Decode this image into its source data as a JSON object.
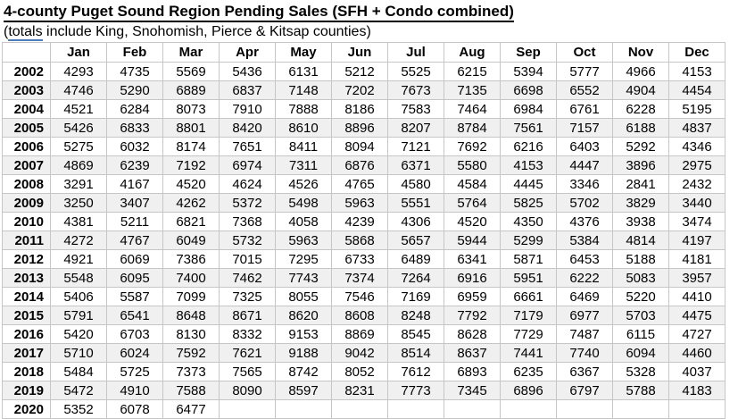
{
  "header": {
    "title": "4-county Puget Sound Region Pending Sales (SFH + Condo combined)",
    "subtitle_prefix": "(",
    "subtitle_linked": "totals",
    "subtitle_rest": " include King, Snohomish, Pierce & Kitsap counties)"
  },
  "colors": {
    "grid_border": "#c6c6c6",
    "row_stripe": "#f0f0f0",
    "title_underline": "#000000",
    "totals_underline": "#4a7ebb"
  },
  "chart_data": {
    "type": "table",
    "title": "4-county Puget Sound Region Pending Sales (SFH + Condo combined)",
    "columns": [
      "Jan",
      "Feb",
      "Mar",
      "Apr",
      "May",
      "Jun",
      "Jul",
      "Aug",
      "Sep",
      "Oct",
      "Nov",
      "Dec"
    ],
    "rows": [
      {
        "year": "2002",
        "values": [
          "4293",
          "4735",
          "5569",
          "5436",
          "6131",
          "5212",
          "5525",
          "6215",
          "5394",
          "5777",
          "4966",
          "4153"
        ]
      },
      {
        "year": "2003",
        "values": [
          "4746",
          "5290",
          "6889",
          "6837",
          "7148",
          "7202",
          "7673",
          "7135",
          "6698",
          "6552",
          "4904",
          "4454"
        ]
      },
      {
        "year": "2004",
        "values": [
          "4521",
          "6284",
          "8073",
          "7910",
          "7888",
          "8186",
          "7583",
          "7464",
          "6984",
          "6761",
          "6228",
          "5195"
        ]
      },
      {
        "year": "2005",
        "values": [
          "5426",
          "6833",
          "8801",
          "8420",
          "8610",
          "8896",
          "8207",
          "8784",
          "7561",
          "7157",
          "6188",
          "4837"
        ]
      },
      {
        "year": "2006",
        "values": [
          "5275",
          "6032",
          "8174",
          "7651",
          "8411",
          "8094",
          "7121",
          "7692",
          "6216",
          "6403",
          "5292",
          "4346"
        ]
      },
      {
        "year": "2007",
        "values": [
          "4869",
          "6239",
          "7192",
          "6974",
          "7311",
          "6876",
          "6371",
          "5580",
          "4153",
          "4447",
          "3896",
          "2975"
        ]
      },
      {
        "year": "2008",
        "values": [
          "3291",
          "4167",
          "4520",
          "4624",
          "4526",
          "4765",
          "4580",
          "4584",
          "4445",
          "3346",
          "2841",
          "2432"
        ]
      },
      {
        "year": "2009",
        "values": [
          "3250",
          "3407",
          "4262",
          "5372",
          "5498",
          "5963",
          "5551",
          "5764",
          "5825",
          "5702",
          "3829",
          "3440"
        ]
      },
      {
        "year": "2010",
        "values": [
          "4381",
          "5211",
          "6821",
          "7368",
          "4058",
          "4239",
          "4306",
          "4520",
          "4350",
          "4376",
          "3938",
          "3474"
        ]
      },
      {
        "year": "2011",
        "values": [
          "4272",
          "4767",
          "6049",
          "5732",
          "5963",
          "5868",
          "5657",
          "5944",
          "5299",
          "5384",
          "4814",
          "4197"
        ]
      },
      {
        "year": "2012",
        "values": [
          "4921",
          "6069",
          "7386",
          "7015",
          "7295",
          "6733",
          "6489",
          "6341",
          "5871",
          "6453",
          "5188",
          "4181"
        ]
      },
      {
        "year": "2013",
        "values": [
          "5548",
          "6095",
          "7400",
          "7462",
          "7743",
          "7374",
          "7264",
          "6916",
          "5951",
          "6222",
          "5083",
          "3957"
        ]
      },
      {
        "year": "2014",
        "values": [
          "5406",
          "5587",
          "7099",
          "7325",
          "8055",
          "7546",
          "7169",
          "6959",
          "6661",
          "6469",
          "5220",
          "4410"
        ]
      },
      {
        "year": "2015",
        "values": [
          "5791",
          "6541",
          "8648",
          "8671",
          "8620",
          "8608",
          "8248",
          "7792",
          "7179",
          "6977",
          "5703",
          "4475"
        ]
      },
      {
        "year": "2016",
        "values": [
          "5420",
          "6703",
          "8130",
          "8332",
          "9153",
          "8869",
          "8545",
          "8628",
          "7729",
          "7487",
          "6115",
          "4727"
        ]
      },
      {
        "year": "2017",
        "values": [
          "5710",
          "6024",
          "7592",
          "7621",
          "9188",
          "9042",
          "8514",
          "8637",
          "7441",
          "7740",
          "6094",
          "4460"
        ]
      },
      {
        "year": "2018",
        "values": [
          "5484",
          "5725",
          "7373",
          "7565",
          "8742",
          "8052",
          "7612",
          "6893",
          "6235",
          "6367",
          "5328",
          "4037"
        ]
      },
      {
        "year": "2019",
        "values": [
          "5472",
          "4910",
          "7588",
          "8090",
          "8597",
          "8231",
          "7773",
          "7345",
          "6896",
          "6797",
          "5788",
          "4183"
        ]
      },
      {
        "year": "2020",
        "values": [
          "5352",
          "6078",
          "6477",
          "",
          "",
          "",
          "",
          "",
          "",
          "",
          "",
          ""
        ]
      }
    ]
  }
}
